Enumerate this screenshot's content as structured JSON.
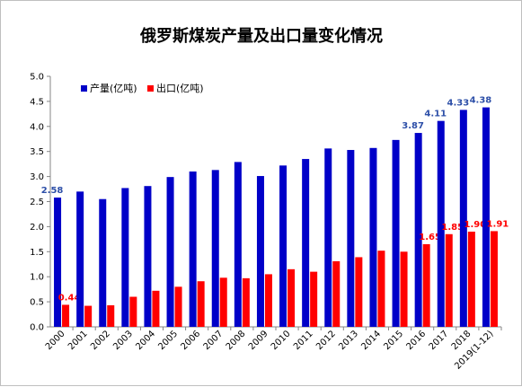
{
  "chart_data": {
    "type": "bar",
    "title": "俄罗斯煤炭产量及出口量变化情况",
    "xlabel": "",
    "ylabel": "",
    "ylim": [
      0,
      5.0
    ],
    "yticks": [
      "0.0",
      "0.5",
      "1.0",
      "1.5",
      "2.0",
      "2.5",
      "3.0",
      "3.5",
      "4.0",
      "4.5",
      "5.0"
    ],
    "grid": false,
    "legend_position": "top-left",
    "categories": [
      "2000",
      "2001",
      "2002",
      "2003",
      "2004",
      "2005",
      "2006",
      "2007",
      "2008",
      "2009",
      "2010",
      "2011",
      "2012",
      "2013",
      "2014",
      "2015",
      "2016",
      "2017",
      "2018",
      "2019(1-12)"
    ],
    "series": [
      {
        "name": "产量(亿吨)",
        "color": "#0000c8",
        "values": [
          2.58,
          2.7,
          2.55,
          2.77,
          2.81,
          2.99,
          3.1,
          3.13,
          3.29,
          3.01,
          3.22,
          3.35,
          3.56,
          3.53,
          3.57,
          3.73,
          3.87,
          4.11,
          4.33,
          4.38
        ],
        "labels": [
          "2.58",
          "",
          "",
          "",
          "",
          "",
          "",
          "",
          "",
          "",
          "",
          "",
          "",
          "",
          "",
          "",
          "3.87",
          "4.11",
          "4.33",
          "4.38"
        ]
      },
      {
        "name": "出口(亿吨)",
        "color": "#ff0000",
        "values": [
          0.44,
          0.42,
          0.43,
          0.6,
          0.72,
          0.8,
          0.91,
          0.98,
          0.97,
          1.05,
          1.15,
          1.1,
          1.31,
          1.39,
          1.52,
          1.5,
          1.65,
          1.85,
          1.9,
          1.91
        ],
        "labels": [
          "0.44",
          "",
          "",
          "",
          "",
          "",
          "",
          "",
          "",
          "",
          "",
          "",
          "",
          "",
          "",
          "",
          "1.65",
          "1.85",
          "1.90",
          "1.91"
        ]
      }
    ]
  }
}
